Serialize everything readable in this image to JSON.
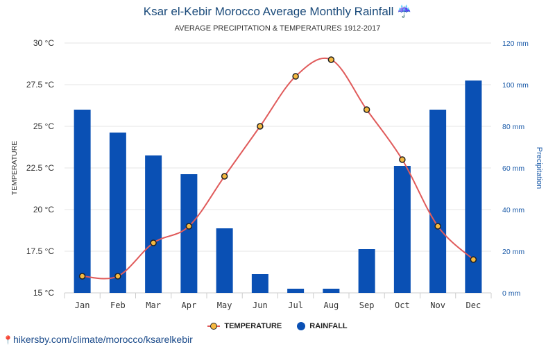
{
  "header": {
    "title": "Ksar el-Kebir Morocco Average Monthly Rainfall ☔",
    "subtitle": "AVERAGE PRECIPITATION & TEMPERATURES 1912-2017"
  },
  "footer": {
    "link_text": "hikersby.com/climate/morocco/ksarelkebir"
  },
  "legend": {
    "temperature": "TEMPERATURE",
    "rainfall": "RAINFALL"
  },
  "chart_data": {
    "type": "bar",
    "categories": [
      "Jan",
      "Feb",
      "Mar",
      "Apr",
      "May",
      "Jun",
      "Jul",
      "Aug",
      "Sep",
      "Oct",
      "Nov",
      "Dec"
    ],
    "series": [
      {
        "name": "RAINFALL",
        "type": "bar",
        "axis": "right",
        "values": [
          88,
          77,
          66,
          57,
          31,
          9,
          2,
          2,
          21,
          61,
          88,
          102
        ]
      },
      {
        "name": "TEMPERATURE",
        "type": "line",
        "axis": "left",
        "values": [
          16,
          16,
          18,
          19,
          22,
          25,
          28,
          29,
          26,
          23,
          19,
          17
        ]
      }
    ],
    "ylabel": "TEMPERATURE",
    "y2label": "Precipitation",
    "ylim": [
      15,
      30
    ],
    "y2lim": [
      0,
      120
    ],
    "y_ticks": [
      "15 °C",
      "17.5 °C",
      "20 °C",
      "22.5 °C",
      "25 °C",
      "27.5 °C",
      "30 °C"
    ],
    "y2_ticks": [
      "0 mm",
      "20 mm",
      "40 mm",
      "60 mm",
      "80 mm",
      "100 mm",
      "120 mm"
    ],
    "grid": true,
    "legend_position": "bottom",
    "colors": {
      "rain": "#0a50b4",
      "temp_line": "#e05b5b",
      "temp_marker": "#f5b940",
      "left_axis": "#333333",
      "right_axis": "#1a5aa8"
    }
  }
}
